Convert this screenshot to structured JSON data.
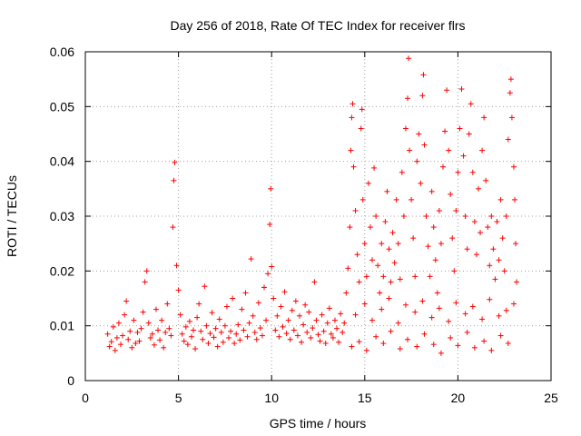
{
  "chart_data": {
    "type": "scatter",
    "title": "Day 256 of 2018, Rate Of TEC Index for receiver flrs",
    "xlabel": "GPS time / hours",
    "ylabel": "ROTI / TECUs",
    "xlim": [
      0,
      25
    ],
    "ylim": [
      0,
      0.06
    ],
    "x_ticks": [
      0,
      5,
      10,
      15,
      20,
      25
    ],
    "x_tick_labels": [
      "0",
      "5",
      "10",
      "15",
      "20",
      "25"
    ],
    "y_ticks": [
      0,
      0.01,
      0.02,
      0.03,
      0.04,
      0.05,
      0.06
    ],
    "y_tick_labels": [
      "0",
      "0.01",
      "0.02",
      "0.03",
      "0.04",
      "0.05",
      "0.06"
    ],
    "grid": true,
    "marker": "+",
    "series": [
      {
        "name": "ROTI",
        "color": "#ff0000",
        "points": [
          [
            1.2,
            0.0085
          ],
          [
            1.3,
            0.0062
          ],
          [
            1.4,
            0.0071
          ],
          [
            1.5,
            0.0098
          ],
          [
            1.6,
            0.0055
          ],
          [
            1.7,
            0.0078
          ],
          [
            1.8,
            0.0105
          ],
          [
            1.9,
            0.0066
          ],
          [
            2.0,
            0.0082
          ],
          [
            2.1,
            0.012
          ],
          [
            2.2,
            0.0145
          ],
          [
            2.3,
            0.0075
          ],
          [
            2.4,
            0.009
          ],
          [
            2.5,
            0.006
          ],
          [
            2.6,
            0.011
          ],
          [
            2.7,
            0.0068
          ],
          [
            2.8,
            0.0088
          ],
          [
            2.9,
            0.0072
          ],
          [
            3.0,
            0.0095
          ],
          [
            3.1,
            0.0125
          ],
          [
            3.2,
            0.018
          ],
          [
            3.3,
            0.02
          ],
          [
            3.4,
            0.0105
          ],
          [
            3.5,
            0.0078
          ],
          [
            3.6,
            0.0085
          ],
          [
            3.7,
            0.0065
          ],
          [
            3.8,
            0.013
          ],
          [
            3.9,
            0.0092
          ],
          [
            4.0,
            0.0074
          ],
          [
            4.1,
            0.011
          ],
          [
            4.2,
            0.006
          ],
          [
            4.3,
            0.0088
          ],
          [
            4.4,
            0.014
          ],
          [
            4.5,
            0.0095
          ],
          [
            4.6,
            0.0082
          ],
          [
            4.7,
            0.028
          ],
          [
            4.75,
            0.0365
          ],
          [
            4.8,
            0.0398
          ],
          [
            4.9,
            0.021
          ],
          [
            5.0,
            0.0165
          ],
          [
            5.1,
            0.012
          ],
          [
            5.2,
            0.0085
          ],
          [
            5.3,
            0.0072
          ],
          [
            5.4,
            0.0098
          ],
          [
            5.5,
            0.0066
          ],
          [
            5.6,
            0.0108
          ],
          [
            5.7,
            0.008
          ],
          [
            5.8,
            0.0092
          ],
          [
            5.9,
            0.0058
          ],
          [
            6.0,
            0.0115
          ],
          [
            6.1,
            0.014
          ],
          [
            6.2,
            0.009
          ],
          [
            6.3,
            0.0075
          ],
          [
            6.4,
            0.0172
          ],
          [
            6.5,
            0.01
          ],
          [
            6.6,
            0.0068
          ],
          [
            6.7,
            0.0086
          ],
          [
            6.8,
            0.0124
          ],
          [
            6.9,
            0.0079
          ],
          [
            7.0,
            0.0095
          ],
          [
            7.1,
            0.0062
          ],
          [
            7.2,
            0.0112
          ],
          [
            7.3,
            0.0088
          ],
          [
            7.4,
            0.007
          ],
          [
            7.5,
            0.01
          ],
          [
            7.6,
            0.0135
          ],
          [
            7.7,
            0.0078
          ],
          [
            7.8,
            0.009
          ],
          [
            7.9,
            0.015
          ],
          [
            8.0,
            0.0068
          ],
          [
            8.1,
            0.0085
          ],
          [
            8.2,
            0.0102
          ],
          [
            8.3,
            0.0074
          ],
          [
            8.4,
            0.013
          ],
          [
            8.5,
            0.0092
          ],
          [
            8.6,
            0.016
          ],
          [
            8.7,
            0.008
          ],
          [
            8.8,
            0.0105
          ],
          [
            8.9,
            0.0222
          ],
          [
            9.0,
            0.0118
          ],
          [
            9.1,
            0.0088
          ],
          [
            9.2,
            0.0075
          ],
          [
            9.3,
            0.0142
          ],
          [
            9.4,
            0.0096
          ],
          [
            9.5,
            0.0082
          ],
          [
            9.6,
            0.017
          ],
          [
            9.7,
            0.011
          ],
          [
            9.8,
            0.0195
          ],
          [
            9.9,
            0.0285
          ],
          [
            9.95,
            0.035
          ],
          [
            10.0,
            0.0208
          ],
          [
            10.1,
            0.015
          ],
          [
            10.2,
            0.0092
          ],
          [
            10.3,
            0.0118
          ],
          [
            10.4,
            0.008
          ],
          [
            10.5,
            0.0135
          ],
          [
            10.6,
            0.0098
          ],
          [
            10.7,
            0.0162
          ],
          [
            10.8,
            0.0086
          ],
          [
            10.9,
            0.011
          ],
          [
            11.0,
            0.0075
          ],
          [
            11.1,
            0.0128
          ],
          [
            11.2,
            0.0092
          ],
          [
            11.3,
            0.0145
          ],
          [
            11.4,
            0.0082
          ],
          [
            11.5,
            0.0118
          ],
          [
            11.6,
            0.007
          ],
          [
            11.7,
            0.0102
          ],
          [
            11.8,
            0.0138
          ],
          [
            11.9,
            0.0088
          ],
          [
            12.0,
            0.0125
          ],
          [
            12.1,
            0.0078
          ],
          [
            12.2,
            0.0096
          ],
          [
            12.3,
            0.018
          ],
          [
            12.4,
            0.011
          ],
          [
            12.5,
            0.0084
          ],
          [
            12.6,
            0.0072
          ],
          [
            12.7,
            0.012
          ],
          [
            12.8,
            0.009
          ],
          [
            12.9,
            0.0068
          ],
          [
            13.0,
            0.0105
          ],
          [
            13.1,
            0.0132
          ],
          [
            13.2,
            0.0085
          ],
          [
            13.3,
            0.0078
          ],
          [
            13.4,
            0.011
          ],
          [
            13.5,
            0.0095
          ],
          [
            13.6,
            0.007
          ],
          [
            13.7,
            0.0122
          ],
          [
            13.8,
            0.0088
          ],
          [
            13.9,
            0.0105
          ],
          [
            14.0,
            0.016
          ],
          [
            14.1,
            0.0205
          ],
          [
            14.2,
            0.028
          ],
          [
            14.25,
            0.042
          ],
          [
            14.3,
            0.048
          ],
          [
            14.35,
            0.0505
          ],
          [
            14.4,
            0.039
          ],
          [
            14.5,
            0.031
          ],
          [
            14.6,
            0.023
          ],
          [
            14.7,
            0.018
          ],
          [
            14.8,
            0.046
          ],
          [
            14.85,
            0.0495
          ],
          [
            14.9,
            0.033
          ],
          [
            15.0,
            0.025
          ],
          [
            15.1,
            0.019
          ],
          [
            15.2,
            0.036
          ],
          [
            15.3,
            0.028
          ],
          [
            15.4,
            0.022
          ],
          [
            15.5,
            0.0388
          ],
          [
            15.6,
            0.03
          ],
          [
            15.7,
            0.021
          ],
          [
            15.8,
            0.016
          ],
          [
            15.9,
            0.025
          ],
          [
            16.0,
            0.019
          ],
          [
            16.1,
            0.029
          ],
          [
            16.2,
            0.0345
          ],
          [
            16.3,
            0.024
          ],
          [
            16.4,
            0.018
          ],
          [
            16.5,
            0.027
          ],
          [
            16.6,
            0.0215
          ],
          [
            16.7,
            0.033
          ],
          [
            16.8,
            0.025
          ],
          [
            16.9,
            0.0185
          ],
          [
            17.0,
            0.038
          ],
          [
            17.1,
            0.03
          ],
          [
            17.2,
            0.046
          ],
          [
            17.3,
            0.0515
          ],
          [
            17.35,
            0.0588
          ],
          [
            17.4,
            0.042
          ],
          [
            17.5,
            0.033
          ],
          [
            17.6,
            0.026
          ],
          [
            17.7,
            0.019
          ],
          [
            17.8,
            0.04
          ],
          [
            17.9,
            0.045
          ],
          [
            18.0,
            0.036
          ],
          [
            18.1,
            0.052
          ],
          [
            18.15,
            0.0558
          ],
          [
            18.2,
            0.043
          ],
          [
            18.3,
            0.03
          ],
          [
            18.4,
            0.0245
          ],
          [
            18.5,
            0.019
          ],
          [
            18.6,
            0.0345
          ],
          [
            18.7,
            0.028
          ],
          [
            18.8,
            0.022
          ],
          [
            18.9,
            0.016
          ],
          [
            19.0,
            0.031
          ],
          [
            19.1,
            0.025
          ],
          [
            19.2,
            0.039
          ],
          [
            19.3,
            0.0455
          ],
          [
            19.4,
            0.053
          ],
          [
            19.5,
            0.042
          ],
          [
            19.6,
            0.034
          ],
          [
            19.7,
            0.026
          ],
          [
            19.8,
            0.02
          ],
          [
            19.9,
            0.031
          ],
          [
            20.0,
            0.038
          ],
          [
            20.1,
            0.046
          ],
          [
            20.2,
            0.0532
          ],
          [
            20.3,
            0.041
          ],
          [
            20.4,
            0.03
          ],
          [
            20.5,
            0.024
          ],
          [
            20.6,
            0.045
          ],
          [
            20.7,
            0.0505
          ],
          [
            20.8,
            0.038
          ],
          [
            20.9,
            0.029
          ],
          [
            21.0,
            0.023
          ],
          [
            21.1,
            0.035
          ],
          [
            21.2,
            0.027
          ],
          [
            21.3,
            0.042
          ],
          [
            21.4,
            0.048
          ],
          [
            21.5,
            0.0365
          ],
          [
            21.6,
            0.028
          ],
          [
            21.7,
            0.021
          ],
          [
            21.8,
            0.03
          ],
          [
            21.9,
            0.024
          ],
          [
            22.0,
            0.0185
          ],
          [
            22.1,
            0.029
          ],
          [
            22.2,
            0.022
          ],
          [
            22.3,
            0.033
          ],
          [
            22.4,
            0.026
          ],
          [
            22.5,
            0.02
          ],
          [
            22.6,
            0.03
          ],
          [
            22.7,
            0.044
          ],
          [
            22.8,
            0.0525
          ],
          [
            22.85,
            0.055
          ],
          [
            22.9,
            0.048
          ],
          [
            23.0,
            0.039
          ],
          [
            23.05,
            0.033
          ],
          [
            23.1,
            0.025
          ],
          [
            23.15,
            0.018
          ],
          [
            14.3,
            0.0062
          ],
          [
            14.7,
            0.0071
          ],
          [
            15.1,
            0.0055
          ],
          [
            15.6,
            0.008
          ],
          [
            16.0,
            0.0068
          ],
          [
            16.4,
            0.009
          ],
          [
            16.9,
            0.0058
          ],
          [
            17.3,
            0.0075
          ],
          [
            17.8,
            0.0062
          ],
          [
            18.2,
            0.0085
          ],
          [
            18.7,
            0.0066
          ],
          [
            19.1,
            0.005
          ],
          [
            19.6,
            0.0078
          ],
          [
            20.0,
            0.0064
          ],
          [
            20.5,
            0.0088
          ],
          [
            20.9,
            0.006
          ],
          [
            21.4,
            0.0072
          ],
          [
            21.8,
            0.0055
          ],
          [
            22.3,
            0.0082
          ],
          [
            22.7,
            0.0068
          ],
          [
            14.5,
            0.012
          ],
          [
            15.0,
            0.014
          ],
          [
            15.4,
            0.011
          ],
          [
            15.9,
            0.013
          ],
          [
            16.3,
            0.015
          ],
          [
            16.8,
            0.0105
          ],
          [
            17.2,
            0.0138
          ],
          [
            17.7,
            0.0125
          ],
          [
            18.1,
            0.0145
          ],
          [
            18.6,
            0.0115
          ],
          [
            19.0,
            0.0132
          ],
          [
            19.5,
            0.0108
          ],
          [
            19.9,
            0.0142
          ],
          [
            20.4,
            0.0122
          ],
          [
            20.8,
            0.0135
          ],
          [
            21.3,
            0.0112
          ],
          [
            21.7,
            0.0148
          ],
          [
            22.2,
            0.0118
          ],
          [
            22.6,
            0.0128
          ],
          [
            23.0,
            0.014
          ]
        ]
      }
    ]
  }
}
